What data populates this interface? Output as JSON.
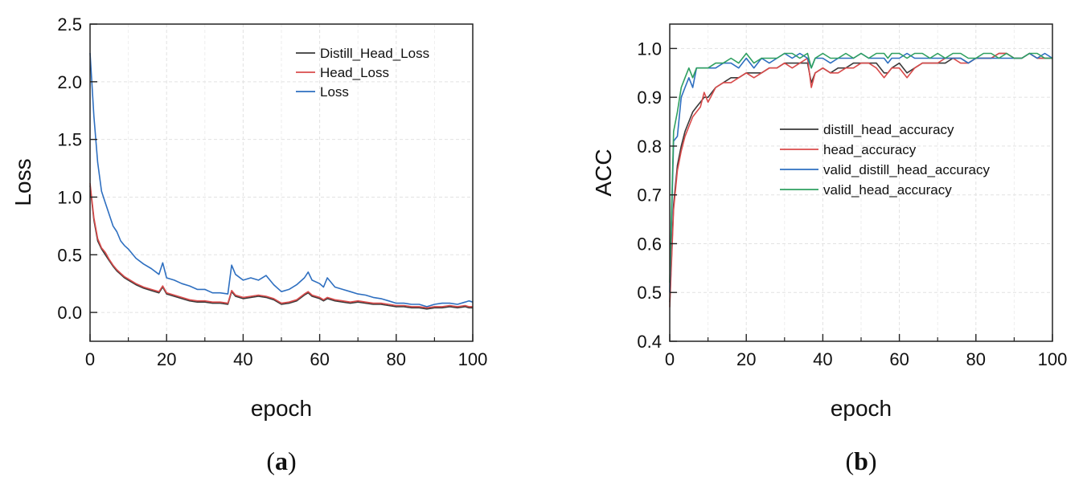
{
  "chart_data": [
    {
      "type": "line",
      "panel_label": "a",
      "title": "",
      "xlabel": "epoch",
      "ylabel": "Loss",
      "xlim": [
        0,
        100
      ],
      "ylim": [
        -0.25,
        2.5
      ],
      "xticks": [
        "0",
        "20",
        "40",
        "60",
        "80",
        "100"
      ],
      "yticks": [
        "0.0",
        "0.5",
        "1.0",
        "1.5",
        "2.0",
        "2.5"
      ],
      "grid": true,
      "legend_position": "top-right",
      "colors": {
        "Distill_Head_Loss": "#3a3a3a",
        "Head_Loss": "#d94b4b",
        "Loss": "#2e6fc0"
      },
      "x": [
        0,
        1,
        2,
        3,
        4,
        5,
        6,
        7,
        8,
        9,
        10,
        12,
        14,
        16,
        18,
        19,
        20,
        22,
        24,
        26,
        28,
        30,
        32,
        34,
        36,
        37,
        38,
        40,
        42,
        44,
        46,
        48,
        50,
        52,
        54,
        56,
        57,
        58,
        60,
        61,
        62,
        64,
        66,
        68,
        70,
        72,
        74,
        76,
        78,
        80,
        82,
        84,
        86,
        88,
        90,
        92,
        94,
        96,
        98,
        99,
        100
      ],
      "series": [
        {
          "name": "Distill_Head_Loss",
          "values": [
            1.1,
            0.8,
            0.62,
            0.55,
            0.5,
            0.45,
            0.4,
            0.36,
            0.33,
            0.3,
            0.28,
            0.24,
            0.21,
            0.19,
            0.17,
            0.22,
            0.16,
            0.14,
            0.12,
            0.1,
            0.09,
            0.09,
            0.08,
            0.08,
            0.07,
            0.18,
            0.14,
            0.12,
            0.13,
            0.14,
            0.13,
            0.11,
            0.07,
            0.08,
            0.1,
            0.15,
            0.17,
            0.14,
            0.12,
            0.1,
            0.12,
            0.1,
            0.09,
            0.08,
            0.09,
            0.08,
            0.07,
            0.07,
            0.06,
            0.05,
            0.05,
            0.04,
            0.04,
            0.03,
            0.04,
            0.04,
            0.05,
            0.04,
            0.05,
            0.04,
            0.04
          ]
        },
        {
          "name": "Head_Loss",
          "values": [
            1.12,
            0.82,
            0.64,
            0.56,
            0.52,
            0.46,
            0.41,
            0.37,
            0.34,
            0.31,
            0.29,
            0.25,
            0.22,
            0.2,
            0.18,
            0.23,
            0.17,
            0.15,
            0.13,
            0.11,
            0.1,
            0.1,
            0.09,
            0.09,
            0.08,
            0.19,
            0.15,
            0.13,
            0.14,
            0.15,
            0.14,
            0.12,
            0.08,
            0.09,
            0.11,
            0.16,
            0.18,
            0.15,
            0.13,
            0.11,
            0.13,
            0.11,
            0.1,
            0.09,
            0.1,
            0.09,
            0.08,
            0.08,
            0.07,
            0.06,
            0.06,
            0.05,
            0.05,
            0.04,
            0.05,
            0.05,
            0.06,
            0.05,
            0.06,
            0.05,
            0.05
          ]
        },
        {
          "name": "Loss",
          "values": [
            2.25,
            1.7,
            1.3,
            1.05,
            0.95,
            0.85,
            0.75,
            0.7,
            0.62,
            0.58,
            0.55,
            0.47,
            0.42,
            0.38,
            0.33,
            0.43,
            0.3,
            0.28,
            0.25,
            0.23,
            0.2,
            0.2,
            0.17,
            0.17,
            0.16,
            0.41,
            0.33,
            0.28,
            0.3,
            0.28,
            0.32,
            0.24,
            0.18,
            0.2,
            0.24,
            0.3,
            0.35,
            0.28,
            0.25,
            0.22,
            0.3,
            0.22,
            0.2,
            0.18,
            0.16,
            0.15,
            0.13,
            0.12,
            0.1,
            0.08,
            0.08,
            0.07,
            0.07,
            0.05,
            0.07,
            0.08,
            0.08,
            0.07,
            0.09,
            0.1,
            0.09
          ]
        }
      ]
    },
    {
      "type": "line",
      "panel_label": "b",
      "title": "",
      "xlabel": "epoch",
      "ylabel": "ACC",
      "xlim": [
        0,
        100
      ],
      "ylim": [
        0.4,
        1.05
      ],
      "xticks": [
        "0",
        "20",
        "40",
        "60",
        "80",
        "100"
      ],
      "yticks": [
        "0.4",
        "0.5",
        "0.6",
        "0.7",
        "0.8",
        "0.9",
        "1.0"
      ],
      "grid": true,
      "legend_position": "center-right",
      "colors": {
        "distill_head_accuracy": "#3a3a3a",
        "head_accuracy": "#d94b4b",
        "valid_distill_head_accuracy": "#2e6fc0",
        "valid_head_accuracy": "#2fa060"
      },
      "x": [
        0,
        1,
        2,
        3,
        4,
        5,
        6,
        7,
        8,
        9,
        10,
        12,
        14,
        16,
        18,
        20,
        22,
        24,
        26,
        28,
        30,
        32,
        34,
        36,
        37,
        38,
        40,
        42,
        44,
        46,
        48,
        50,
        52,
        54,
        56,
        57,
        58,
        60,
        62,
        64,
        66,
        68,
        70,
        72,
        74,
        76,
        78,
        80,
        82,
        84,
        86,
        88,
        90,
        92,
        94,
        96,
        98,
        100
      ],
      "series": [
        {
          "name": "distill_head_accuracy",
          "values": [
            0.48,
            0.68,
            0.76,
            0.8,
            0.83,
            0.85,
            0.87,
            0.88,
            0.89,
            0.9,
            0.9,
            0.92,
            0.93,
            0.94,
            0.94,
            0.95,
            0.95,
            0.95,
            0.96,
            0.96,
            0.97,
            0.97,
            0.97,
            0.97,
            0.93,
            0.95,
            0.96,
            0.95,
            0.96,
            0.96,
            0.97,
            0.97,
            0.97,
            0.97,
            0.95,
            0.95,
            0.96,
            0.97,
            0.95,
            0.96,
            0.97,
            0.97,
            0.97,
            0.97,
            0.98,
            0.98,
            0.97,
            0.98,
            0.98,
            0.98,
            0.99,
            0.99,
            0.98,
            0.98,
            0.99,
            0.98,
            0.98,
            0.98
          ]
        },
        {
          "name": "head_accuracy",
          "values": [
            0.47,
            0.67,
            0.75,
            0.79,
            0.82,
            0.84,
            0.86,
            0.87,
            0.88,
            0.91,
            0.89,
            0.92,
            0.93,
            0.93,
            0.94,
            0.95,
            0.94,
            0.95,
            0.96,
            0.96,
            0.97,
            0.96,
            0.97,
            0.98,
            0.92,
            0.95,
            0.96,
            0.95,
            0.95,
            0.96,
            0.96,
            0.97,
            0.97,
            0.96,
            0.94,
            0.95,
            0.96,
            0.96,
            0.94,
            0.96,
            0.97,
            0.97,
            0.97,
            0.98,
            0.98,
            0.97,
            0.97,
            0.98,
            0.98,
            0.98,
            0.99,
            0.99,
            0.98,
            0.98,
            0.99,
            0.98,
            0.98,
            0.98
          ]
        },
        {
          "name": "valid_distill_head_accuracy",
          "values": [
            0.5,
            0.81,
            0.82,
            0.9,
            0.92,
            0.94,
            0.92,
            0.96,
            0.96,
            0.96,
            0.96,
            0.96,
            0.97,
            0.97,
            0.96,
            0.98,
            0.96,
            0.98,
            0.97,
            0.98,
            0.99,
            0.98,
            0.99,
            0.98,
            0.96,
            0.98,
            0.98,
            0.97,
            0.98,
            0.98,
            0.98,
            0.99,
            0.98,
            0.98,
            0.98,
            0.97,
            0.98,
            0.98,
            0.99,
            0.98,
            0.98,
            0.98,
            0.98,
            0.98,
            0.98,
            0.98,
            0.97,
            0.98,
            0.98,
            0.98,
            0.98,
            0.98,
            0.98,
            0.98,
            0.99,
            0.98,
            0.99,
            0.98
          ]
        },
        {
          "name": "valid_head_accuracy",
          "values": [
            0.52,
            0.83,
            0.87,
            0.92,
            0.94,
            0.96,
            0.94,
            0.96,
            0.96,
            0.96,
            0.96,
            0.97,
            0.97,
            0.98,
            0.97,
            0.99,
            0.97,
            0.98,
            0.98,
            0.98,
            0.99,
            0.99,
            0.98,
            0.99,
            0.96,
            0.98,
            0.99,
            0.98,
            0.98,
            0.99,
            0.98,
            0.99,
            0.98,
            0.99,
            0.99,
            0.98,
            0.99,
            0.99,
            0.98,
            0.99,
            0.99,
            0.98,
            0.99,
            0.98,
            0.99,
            0.99,
            0.98,
            0.98,
            0.99,
            0.99,
            0.98,
            0.99,
            0.98,
            0.98,
            0.99,
            0.99,
            0.98,
            0.98
          ]
        }
      ]
    }
  ]
}
